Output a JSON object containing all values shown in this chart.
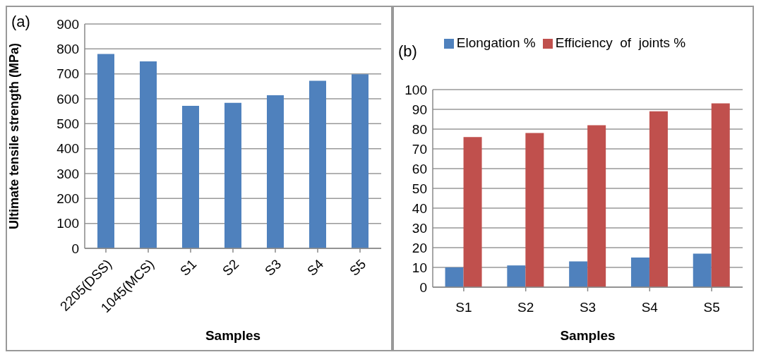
{
  "chart_data": [
    {
      "type": "bar",
      "title": "(a)",
      "categories": [
        "2205(DSS)",
        "1045(MCS)",
        "S1",
        "S2",
        "S3",
        "S4",
        "S5"
      ],
      "values": [
        780,
        750,
        572,
        584,
        614,
        672,
        698
      ],
      "color": "#4f81bd",
      "xlabel": "Samples",
      "ylabel": "Ultimate tensile strength (MPa)",
      "ylim": [
        0,
        900
      ],
      "yticks": [
        0,
        100,
        200,
        300,
        400,
        500,
        600,
        700,
        800,
        900
      ],
      "grid": "y"
    },
    {
      "type": "bar",
      "title": "(b)",
      "categories": [
        "S1",
        "S2",
        "S3",
        "S4",
        "S5"
      ],
      "series": [
        {
          "name": "Elongation %",
          "color": "#4f81bd",
          "values": [
            10,
            11,
            13,
            15,
            17
          ]
        },
        {
          "name": "Efficiency  of  joints %",
          "color": "#c0504d",
          "values": [
            76,
            78,
            82,
            89,
            93
          ]
        }
      ],
      "xlabel": "Samples",
      "ylim": [
        0,
        100
      ],
      "yticks": [
        0,
        10,
        20,
        30,
        40,
        50,
        60,
        70,
        80,
        90,
        100
      ],
      "grid": "y",
      "legend": "top"
    }
  ]
}
